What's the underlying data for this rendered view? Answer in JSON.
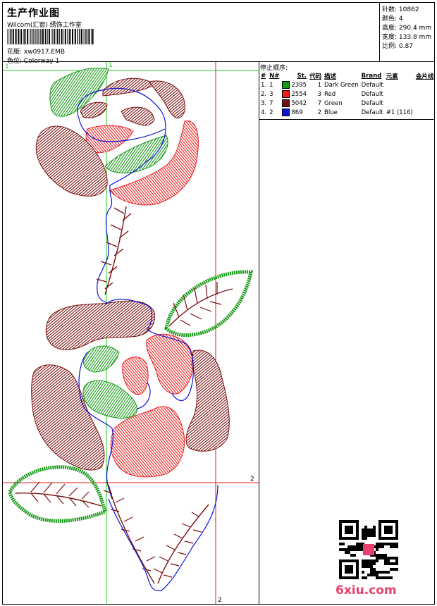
{
  "header": {
    "title": "生产作业图",
    "company": "Wilcom(汇窗) 绣饰工作室",
    "file_label": "花版:",
    "file_value": "xw0917.EMB",
    "colorway_label": "色位:",
    "colorway_value": "Colorway 1"
  },
  "stats": [
    {
      "label": "针数:",
      "value": "10862"
    },
    {
      "label": "颜色:",
      "value": "4"
    },
    {
      "label": "高度:",
      "value": "290.4 mm"
    },
    {
      "label": "宽度:",
      "value": "133.8 mm"
    },
    {
      "label": "比例:",
      "value": "0.87"
    }
  ],
  "stop_sequence": {
    "title": "停止顺序:",
    "columns": [
      "#",
      "N#",
      "St.",
      "代码",
      "描述",
      "Brand",
      "元素",
      "金片线"
    ],
    "rows": [
      {
        "no": "1.",
        "n": "1",
        "color": "#169a16",
        "st": "2395",
        "code": "1",
        "desc": "Dark Green",
        "brand": "Default",
        "elements": "",
        "sequin": ""
      },
      {
        "no": "2.",
        "n": "3",
        "color": "#f01c1c",
        "st": "2554",
        "code": "3",
        "desc": "Red",
        "brand": "Default",
        "elements": "",
        "sequin": ""
      },
      {
        "no": "3.",
        "n": "7",
        "color": "#7a0f0f",
        "st": "5042",
        "code": "7",
        "desc": "Green",
        "brand": "Default",
        "elements": "",
        "sequin": ""
      },
      {
        "no": "4.",
        "n": "2",
        "color": "#0b14d8",
        "st": "869",
        "code": "2",
        "desc": "Blue",
        "brand": "Default",
        "elements": "#1 (116)",
        "sequin": ""
      }
    ]
  },
  "guide_marks": {
    "m1a": "1",
    "m1b": "1",
    "m2a": "2",
    "m2b": "2"
  },
  "watermark": "6xiu.com",
  "colors": {
    "green": "#169a16",
    "red": "#f01c1c",
    "maroon": "#7a0f0f",
    "blue": "#0b14d8",
    "guide_green": "#22cc22",
    "guide_red": "#dd2222"
  }
}
